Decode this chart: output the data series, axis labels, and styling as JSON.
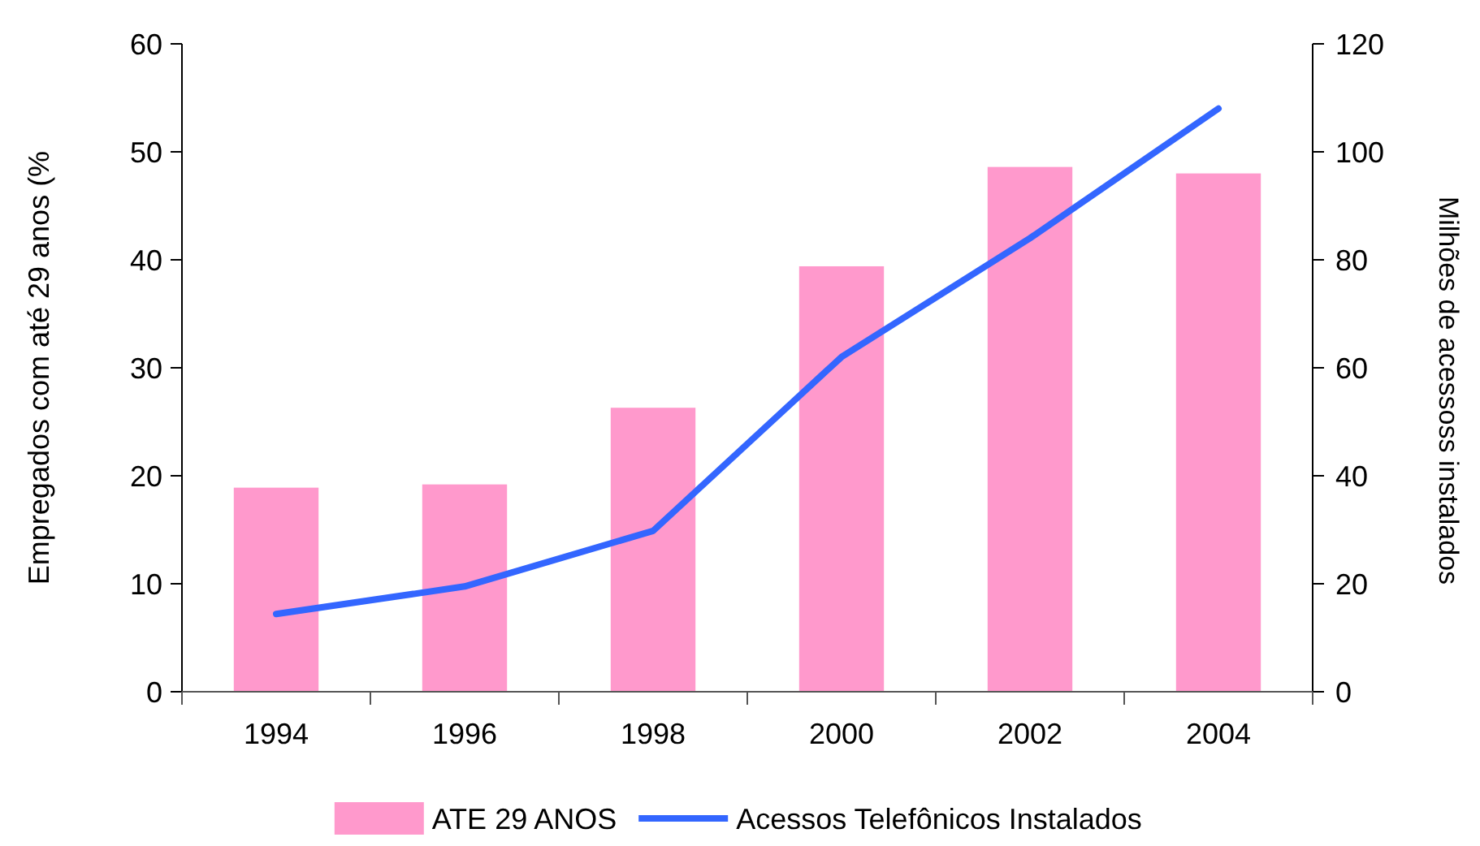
{
  "chart_data": {
    "type": "bar",
    "ylabel": "Empregados com até 29 anos (%",
    "y2label": "Milhões de acessoss instalados",
    "categories": [
      "1994",
      "1996",
      "1998",
      "2000",
      "2002",
      "2004"
    ],
    "series": [
      {
        "name": "ATE 29 ANOS",
        "color": "#ff99cc",
        "values": [
          18.9,
          19.2,
          26.3,
          39.4,
          48.6,
          48.0
        ]
      },
      {
        "name": "Acessos Telefônicos Instalados",
        "type": "line",
        "axis": "y2",
        "color": "#3366ff",
        "values": [
          14.4,
          19.5,
          29.8,
          62,
          84,
          108
        ]
      }
    ],
    "ylim": [
      0,
      60
    ],
    "yticks": [
      0,
      10,
      20,
      30,
      40,
      50,
      60
    ],
    "y2lim": [
      0,
      120
    ],
    "y2ticks": [
      0,
      20,
      40,
      60,
      80,
      100,
      120
    ],
    "legend": "bottom",
    "grid": false
  }
}
